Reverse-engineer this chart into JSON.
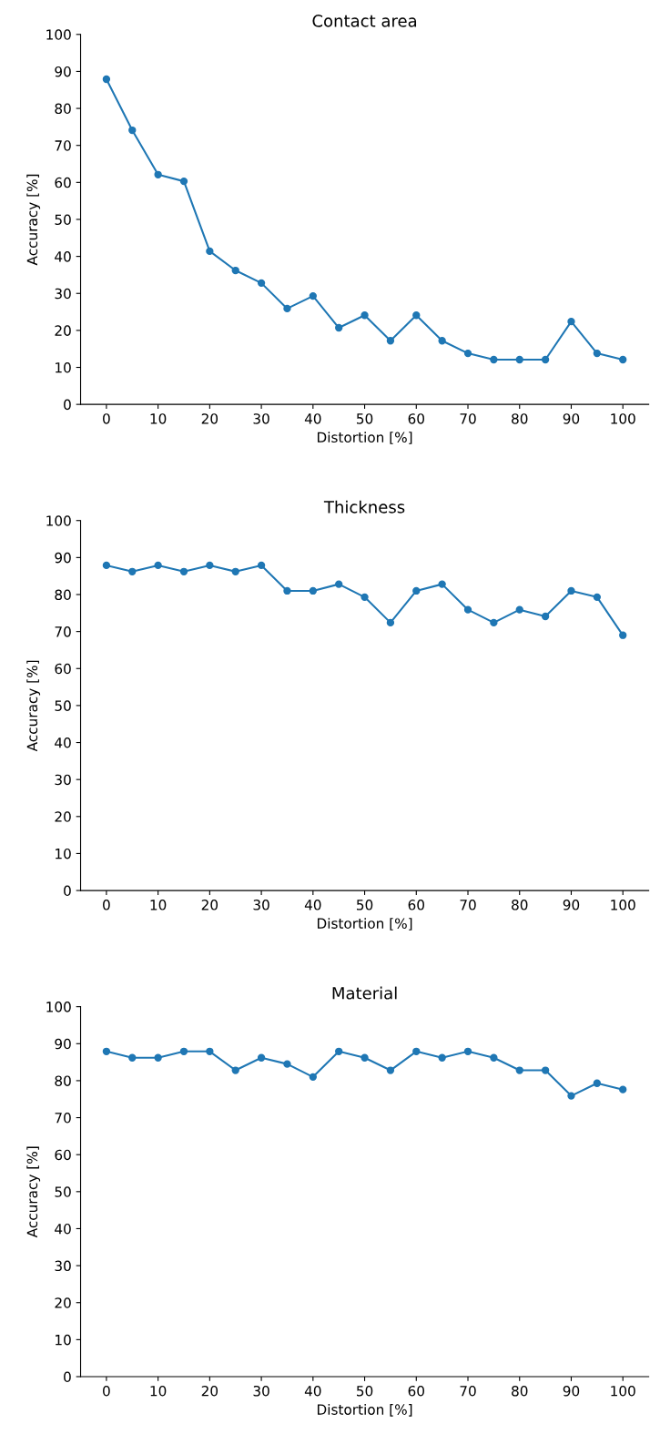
{
  "chart_data": [
    {
      "type": "line",
      "title": "Contact area",
      "xlabel": "Distortion [%]",
      "ylabel": "Accuracy [%]",
      "x": [
        0,
        5,
        10,
        15,
        20,
        25,
        30,
        35,
        40,
        45,
        50,
        55,
        60,
        65,
        70,
        75,
        80,
        85,
        90,
        95,
        100
      ],
      "series": [
        {
          "color": "#1f77b4",
          "values": [
            87.9,
            74.1,
            62.1,
            60.3,
            41.4,
            36.2,
            32.8,
            25.9,
            29.3,
            20.7,
            24.1,
            17.2,
            24.1,
            17.2,
            13.8,
            12.1,
            12.1,
            12.1,
            22.4,
            13.8,
            12.1
          ]
        }
      ],
      "xlim": [
        -5,
        105
      ],
      "xticks": [
        0,
        10,
        20,
        30,
        40,
        50,
        60,
        70,
        80,
        90,
        100
      ],
      "ylim": [
        0,
        100
      ],
      "yticks": [
        0,
        10,
        20,
        30,
        40,
        50,
        60,
        70,
        80,
        90,
        100
      ],
      "marker": "circle",
      "line_style": "solid",
      "grid": false,
      "legend": false
    },
    {
      "type": "line",
      "title": "Thickness",
      "xlabel": "Distortion [%]",
      "ylabel": "Accuracy [%]",
      "x": [
        0,
        5,
        10,
        15,
        20,
        25,
        30,
        35,
        40,
        45,
        50,
        55,
        60,
        65,
        70,
        75,
        80,
        85,
        90,
        95,
        100
      ],
      "series": [
        {
          "color": "#1f77b4",
          "values": [
            87.9,
            86.2,
            87.9,
            86.2,
            87.9,
            86.2,
            87.9,
            81.0,
            81.0,
            82.8,
            79.3,
            72.4,
            81.0,
            82.8,
            75.9,
            72.4,
            75.9,
            74.1,
            81.0,
            79.3,
            69.0
          ]
        }
      ],
      "xlim": [
        -5,
        105
      ],
      "xticks": [
        0,
        10,
        20,
        30,
        40,
        50,
        60,
        70,
        80,
        90,
        100
      ],
      "ylim": [
        0,
        100
      ],
      "yticks": [
        0,
        10,
        20,
        30,
        40,
        50,
        60,
        70,
        80,
        90,
        100
      ],
      "marker": "circle",
      "line_style": "solid",
      "grid": false,
      "legend": false
    },
    {
      "type": "line",
      "title": "Material",
      "xlabel": "Distortion [%]",
      "ylabel": "Accuracy [%]",
      "x": [
        0,
        5,
        10,
        15,
        20,
        25,
        30,
        35,
        40,
        45,
        50,
        55,
        60,
        65,
        70,
        75,
        80,
        85,
        90,
        95,
        100
      ],
      "series": [
        {
          "color": "#1f77b4",
          "values": [
            87.9,
            86.2,
            86.2,
            87.9,
            87.9,
            82.8,
            86.2,
            84.5,
            81.0,
            87.9,
            86.2,
            82.8,
            87.9,
            86.2,
            87.9,
            86.2,
            82.8,
            82.8,
            75.9,
            79.3,
            77.6
          ]
        }
      ],
      "xlim": [
        -5,
        105
      ],
      "xticks": [
        0,
        10,
        20,
        30,
        40,
        50,
        60,
        70,
        80,
        90,
        100
      ],
      "ylim": [
        0,
        100
      ],
      "yticks": [
        0,
        10,
        20,
        30,
        40,
        50,
        60,
        70,
        80,
        90,
        100
      ],
      "marker": "circle",
      "line_style": "solid",
      "grid": false,
      "legend": false
    }
  ]
}
